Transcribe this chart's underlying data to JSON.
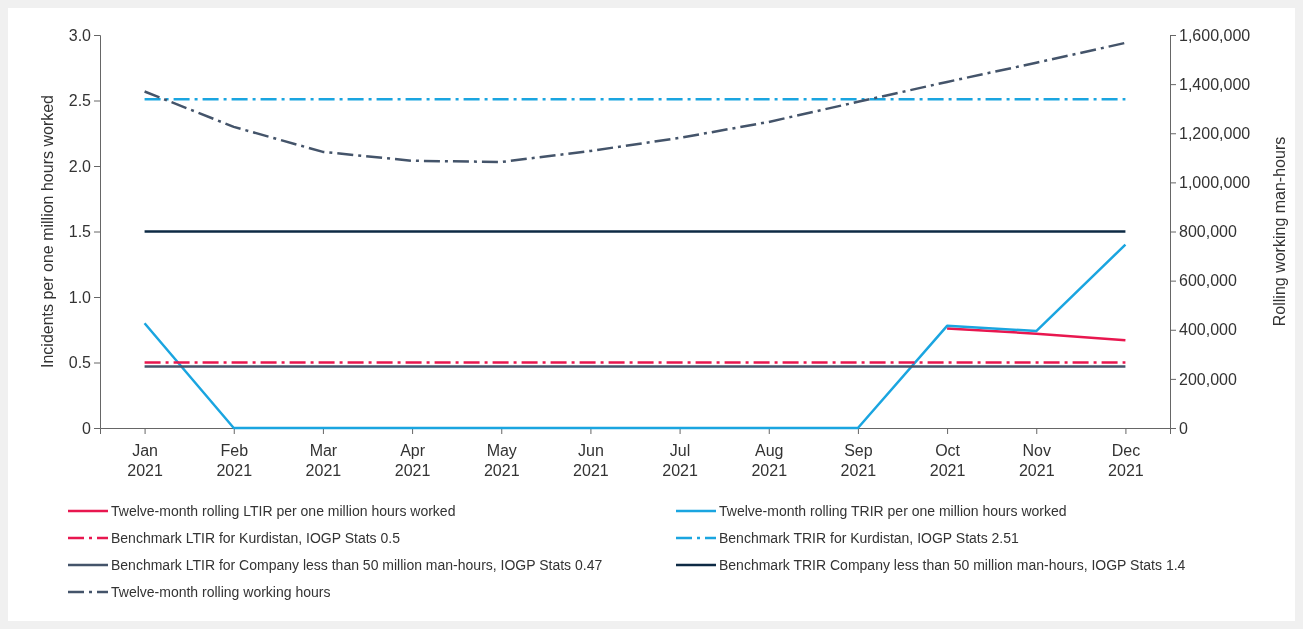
{
  "chart_data": {
    "type": "line",
    "categories": [
      "Jan 2021",
      "Feb 2021",
      "Mar 2021",
      "Apr 2021",
      "May 2021",
      "Jun 2021",
      "Jul 2021",
      "Aug 2021",
      "Sep 2021",
      "Oct 2021",
      "Nov 2021",
      "Dec 2021"
    ],
    "ylabel": "Incidents per one million hours worked",
    "y2label": "Rolling working man-hours",
    "ylim": [
      0,
      3
    ],
    "yticks": [
      0,
      0.5,
      {
        "value": 1,
        "label": "1.0"
      },
      1.5,
      {
        "value": 2,
        "label": "2.0"
      },
      2.5,
      {
        "value": 3,
        "label": "3.0"
      }
    ],
    "y2lim": [
      0,
      1600000
    ],
    "y2ticks": [
      {
        "value": 0,
        "label": "0"
      },
      {
        "value": 200000,
        "label": "200,000"
      },
      {
        "value": 400000,
        "label": "400,000"
      },
      {
        "value": 600000,
        "label": "600,000"
      },
      {
        "value": 800000,
        "label": "800,000"
      },
      {
        "value": 1000000,
        "label": "1,000,000"
      },
      {
        "value": 1200000,
        "label": "1,200,000"
      },
      {
        "value": 1400000,
        "label": "1,400,000"
      },
      {
        "value": 1600000,
        "label": "1,600,000"
      }
    ],
    "grid": false,
    "legend": "bottom",
    "marker": "none",
    "series": [
      {
        "name": "Twelve-month rolling LTIR per one million hours worked",
        "color": "#e8174f",
        "line_style": "solid",
        "values": [
          null,
          null,
          null,
          null,
          null,
          null,
          null,
          null,
          null,
          0.76,
          0.72,
          0.67
        ]
      },
      {
        "name": "Twelve-month rolling TRIR per one million hours worked",
        "color": "#1aa5e0",
        "line_style": "solid",
        "values": [
          0.8,
          0,
          0,
          0,
          0,
          0,
          0,
          0,
          0,
          0.78,
          0.74,
          1.4
        ]
      },
      {
        "name": "Benchmark LTIR for Kurdistan, IOGP Stats 0.5",
        "color": "#e8174f",
        "line_style": "dashed",
        "values": [
          0.5,
          0.5,
          0.5,
          0.5,
          0.5,
          0.5,
          0.5,
          0.5,
          0.5,
          0.5,
          0.5,
          0.5
        ]
      },
      {
        "name": "Benchmark TRIR for Kurdistan, IOGP Stats 2.51",
        "color": "#1aa5e0",
        "line_style": "dashed",
        "values": [
          2.51,
          2.51,
          2.51,
          2.51,
          2.51,
          2.51,
          2.51,
          2.51,
          2.51,
          2.51,
          2.51,
          2.51
        ]
      },
      {
        "name": "Benchmark LTIR for Company less than 50 million man-hours, IOGP Stats 0.47",
        "color": "#44546a",
        "line_style": "solid",
        "values": [
          0.47,
          0.47,
          0.47,
          0.47,
          0.47,
          0.47,
          0.47,
          0.47,
          0.47,
          0.47,
          0.47,
          0.47
        ]
      },
      {
        "name": "Benchmark TRIR Company less than 50 million man-hours, IOGP Stats 1.4",
        "color": "#0d2a44",
        "line_style": "solid",
        "values": [
          1.5,
          1.5,
          1.5,
          1.5,
          1.5,
          1.5,
          1.5,
          1.5,
          1.5,
          1.5,
          1.5,
          1.5
        ]
      },
      {
        "name": "Twelve-month rolling working hours",
        "color": "#44546a",
        "line_style": "dashed",
        "axis": "y2",
        "values": [
          1370000,
          1226000,
          1124000,
          1088000,
          1083000,
          1128000,
          1181000,
          1246000,
          1328000,
          1409000,
          1487000,
          1568000
        ]
      }
    ]
  }
}
